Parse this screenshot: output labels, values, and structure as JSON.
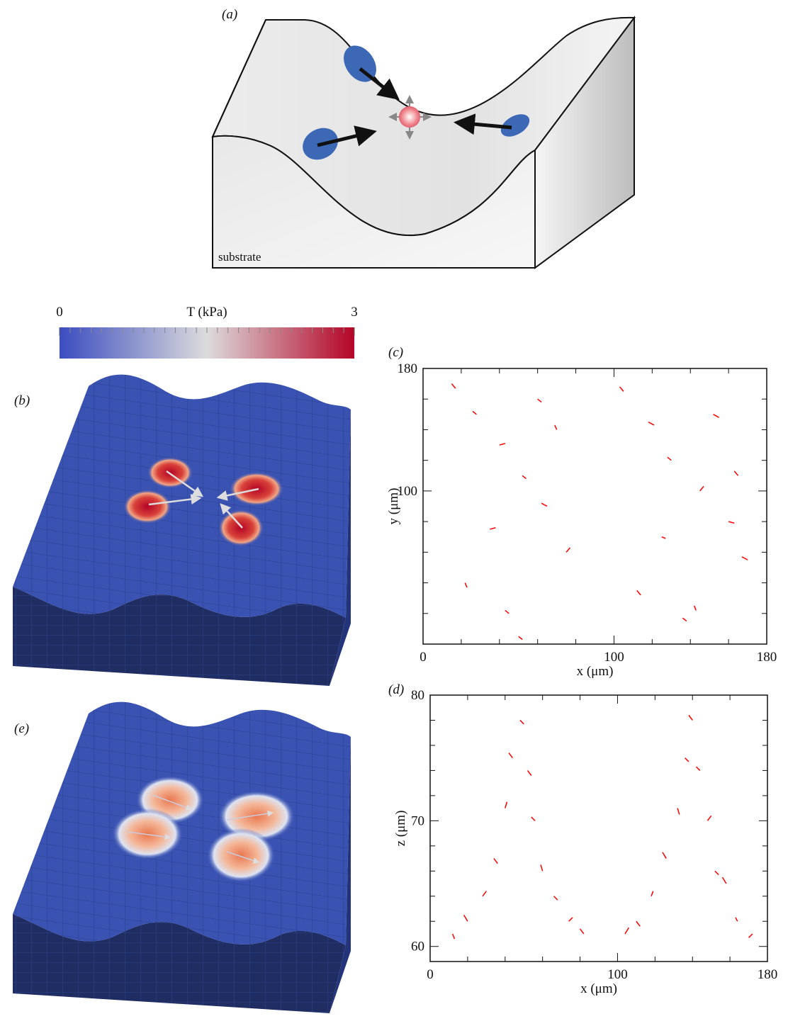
{
  "figure": {
    "panel_a": "(a)",
    "substrate": "substrate",
    "panel_b": "(b)",
    "panel_e": "(e)"
  },
  "colorbar": {
    "title": "T (kPa)",
    "lim": [
      0,
      3
    ],
    "ticks": [
      0,
      3
    ],
    "colors": [
      "#3b4cc0",
      "#dcdcdc",
      "#b40426"
    ]
  },
  "chart_data": [
    {
      "type": "quiver",
      "label": "(c)",
      "color": "#ff0000",
      "x": [
        15,
        28,
        40,
        52,
        65,
        75,
        22,
        45,
        60,
        35,
        70,
        50,
        105,
        118,
        130,
        145,
        160,
        170,
        112,
        138,
        152,
        125,
        165,
        142
      ],
      "y": [
        170,
        150,
        130,
        110,
        90,
        60,
        40,
        20,
        160,
        75,
        140,
        5,
        165,
        145,
        120,
        100,
        80,
        55,
        35,
        15,
        150,
        70,
        110,
        25
      ],
      "u": [
        2,
        -2,
        3,
        2,
        -3,
        2,
        1,
        -2,
        2,
        3,
        -1,
        2,
        -2,
        3,
        -2,
        2,
        3,
        -3,
        2,
        -2,
        3,
        2,
        -2,
        1
      ],
      "v": [
        -3,
        2,
        1,
        -2,
        2,
        3,
        -3,
        2,
        -2,
        1,
        3,
        -2,
        3,
        -2,
        2,
        3,
        -1,
        2,
        -3,
        2,
        -2,
        -1,
        3,
        -3
      ],
      "xlim": [
        0,
        180
      ],
      "ylim": [
        0,
        180
      ],
      "xticks": [
        0,
        100,
        180
      ],
      "yticks": [
        100,
        180
      ],
      "xminor": [
        20,
        40,
        60,
        80,
        120,
        140,
        160
      ],
      "yminor": [
        20,
        40,
        60,
        80,
        120,
        140,
        160
      ],
      "xlabel": "x (μm)",
      "ylabel": "y (μm)"
    },
    {
      "type": "quiver",
      "label": "(d)",
      "color": "#ff0000",
      "x": [
        48,
        44,
        52,
        40,
        56,
        34,
        60,
        28,
        66,
        20,
        74,
        12,
        82,
        140,
        136,
        144,
        132,
        148,
        126,
        152,
        118,
        158,
        110,
        164,
        104,
        172
      ],
      "y": [
        78,
        75,
        74,
        71,
        70,
        67,
        66,
        64,
        64,
        62,
        62,
        61,
        61,
        78,
        75,
        74,
        71,
        70,
        67,
        66,
        64,
        65,
        62,
        62,
        61,
        61
      ],
      "u": [
        2,
        -2,
        2,
        1,
        -2,
        2,
        -1,
        2,
        2,
        -2,
        2,
        1,
        -2,
        -2,
        2,
        -2,
        1,
        2,
        -2,
        2,
        1,
        -2,
        2,
        -1,
        2,
        -2
      ],
      "v": [
        -0.3,
        0.4,
        -0.4,
        0.5,
        0.3,
        -0.4,
        0.5,
        0.4,
        -0.3,
        0.5,
        0.3,
        -0.4,
        0.4,
        0.4,
        -0.3,
        0.3,
        -0.5,
        0.4,
        0.5,
        -0.3,
        0.4,
        0.5,
        -0.4,
        0.3,
        0.5,
        -0.3
      ],
      "xlim": [
        0,
        180
      ],
      "ylim": [
        58.8,
        80
      ],
      "xticks": [
        0,
        100,
        180
      ],
      "yticks": [
        60,
        70,
        80
      ],
      "xminor": [
        20,
        40,
        60,
        80,
        120,
        140,
        160
      ],
      "yminor": [
        62,
        64,
        66,
        68,
        72,
        74,
        76,
        78
      ],
      "xlabel": "x (μm)",
      "ylabel": "z (μm)"
    }
  ]
}
